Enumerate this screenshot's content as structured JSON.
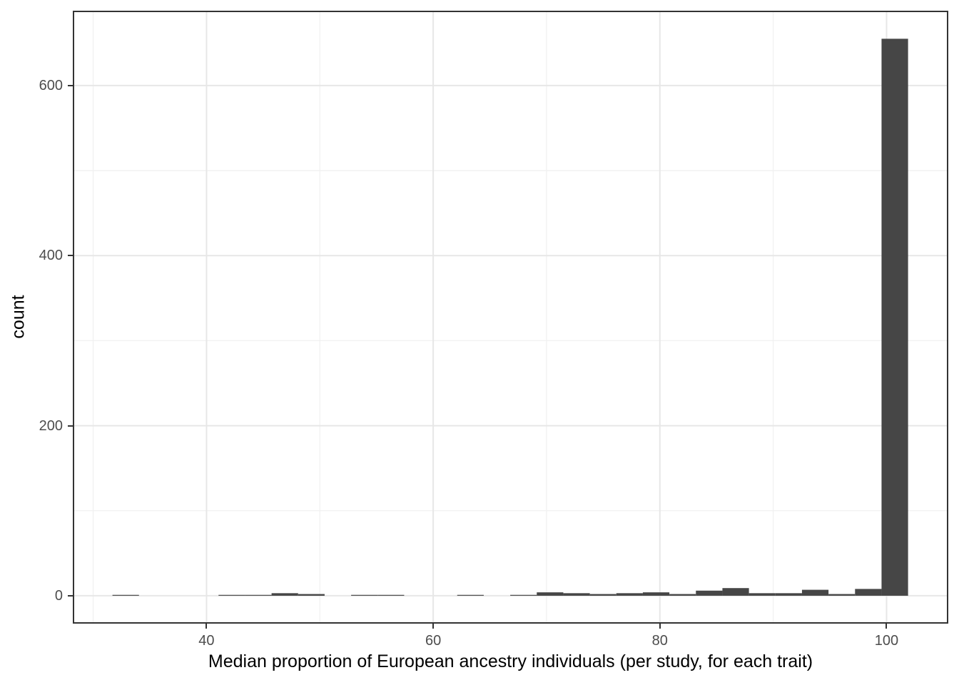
{
  "figure": {
    "background_color": "#FFFFFF",
    "panel_border_color": "#333333",
    "grid_major_color": "#E7E7E7",
    "grid_minor_color": "#F1F1F1",
    "bar_color": "#464646",
    "tick_color": "#333333",
    "tick_label_color": "#4D4D4D",
    "axis_title_color": "#000000"
  },
  "chart_data": {
    "type": "bar",
    "subtype": "histogram",
    "title": "",
    "xlabel": "Median proportion of European ancestry individuals (per study, for each trait)",
    "ylabel": "count",
    "bin_start": 31.7,
    "bin_width": 2.34,
    "counts": [
      1,
      0,
      0,
      0,
      1,
      1,
      3,
      2,
      0,
      1,
      1,
      0,
      0,
      1,
      0,
      1,
      4,
      3,
      2,
      3,
      4,
      2,
      6,
      9,
      3,
      3,
      7,
      2,
      8,
      655
    ],
    "bin_centers": [
      32.9,
      35.2,
      37.6,
      39.9,
      42.2,
      44.6,
      46.9,
      49.2,
      51.6,
      53.9,
      56.3,
      58.6,
      60.9,
      63.3,
      65.6,
      68.0,
      70.3,
      72.7,
      75.0,
      77.3,
      79.7,
      82.0,
      84.4,
      86.7,
      89.0,
      91.4,
      93.7,
      96.1,
      98.4,
      100.7
    ],
    "x_ticks": [
      40,
      60,
      80,
      100
    ],
    "x_minor_ticks": [
      30,
      50,
      70,
      90
    ],
    "y_ticks": [
      0,
      200,
      400,
      600
    ],
    "y_minor_ticks": [
      100,
      300,
      500
    ],
    "xlim": [
      28.2,
      105.45
    ],
    "ylim": [
      -32.8,
      688
    ],
    "grid": true,
    "legend": "none"
  }
}
